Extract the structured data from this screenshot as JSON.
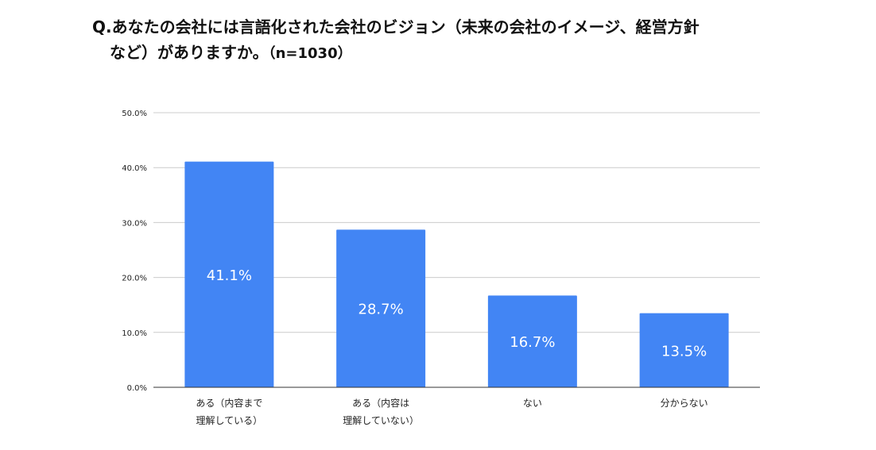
{
  "title": {
    "line1": "Q.あなたの会社には言語化された会社のビジョン（未来の会社のイメージ、経営方針",
    "line2": "など）がありますか。",
    "sample": "（n=1030）"
  },
  "colors": {
    "bar": "#4285f4",
    "bar_label": "#ffffff",
    "grid": "#cccccc",
    "axis": "#333333",
    "text": "#222222"
  },
  "chart_data": {
    "type": "bar",
    "categories": [
      [
        "ある（内容まで",
        "理解している）"
      ],
      [
        "ある（内容は",
        "理解していない）"
      ],
      [
        "ない"
      ],
      [
        "分からない"
      ]
    ],
    "values": [
      41.1,
      28.7,
      16.7,
      13.5
    ],
    "value_labels": [
      "41.1%",
      "28.7%",
      "16.7%",
      "13.5%"
    ],
    "ylim": [
      0,
      50
    ],
    "yticks": [
      0,
      10,
      20,
      30,
      40,
      50
    ],
    "ytick_labels": [
      "0.0%",
      "10.0%",
      "20.0%",
      "30.0%",
      "40.0%",
      "50.0%"
    ],
    "grid": true,
    "legend": "none",
    "xlabel": "",
    "ylabel": ""
  }
}
